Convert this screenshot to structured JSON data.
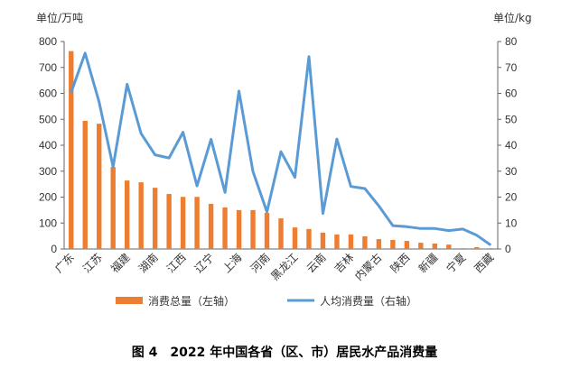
{
  "chart_data": {
    "type": "bar+line",
    "title": "图 4　2022 年中国各省（区、市）居民水产品消费量",
    "left_unit": "单位/万吨",
    "right_unit": "单位/kg",
    "ylim_left": [
      0,
      800
    ],
    "ylim_right": [
      0,
      80
    ],
    "yticks_left": [
      "0",
      "100",
      "200",
      "300",
      "400",
      "500",
      "600",
      "700",
      "800"
    ],
    "yticks_right": [
      "0",
      "10",
      "20",
      "30",
      "40",
      "50",
      "60",
      "70",
      "80"
    ],
    "grid": false,
    "legend_position": "bottom",
    "categories": [
      "广东",
      "",
      "江苏",
      "",
      "福建",
      "",
      "湖南",
      "",
      "江西",
      "",
      "辽宁",
      "",
      "上海",
      "",
      "河南",
      "",
      "黑龙江",
      "",
      "云南",
      "",
      "吉林",
      "",
      "内蒙古",
      "",
      "陕西",
      "",
      "新疆",
      "",
      "宁夏",
      "",
      "西藏"
    ],
    "series": [
      {
        "name": "消费总量（左轴）",
        "type": "bar",
        "axis": "left",
        "color": "#ED7D31",
        "values": [
          763,
          494,
          483,
          316,
          264,
          257,
          236,
          212,
          201,
          201,
          174,
          160,
          150,
          150,
          139,
          118,
          83,
          77,
          63,
          56,
          56,
          49,
          38,
          35,
          31,
          24,
          21,
          17,
          3,
          7,
          3
        ]
      },
      {
        "name": "人均消费量（右轴）",
        "type": "line",
        "axis": "right",
        "color": "#5B9BD5",
        "values": [
          60.3,
          75.5,
          56.7,
          31.7,
          63.5,
          44.5,
          36.3,
          35.1,
          45,
          24.3,
          42.3,
          21.8,
          60.9,
          29.9,
          14.3,
          37.5,
          27.6,
          74.2,
          13.7,
          42.4,
          24.1,
          23.3,
          16.6,
          9,
          8.6,
          7.9,
          7.9,
          7.1,
          7.7,
          5.3,
          1.5
        ]
      }
    ]
  }
}
